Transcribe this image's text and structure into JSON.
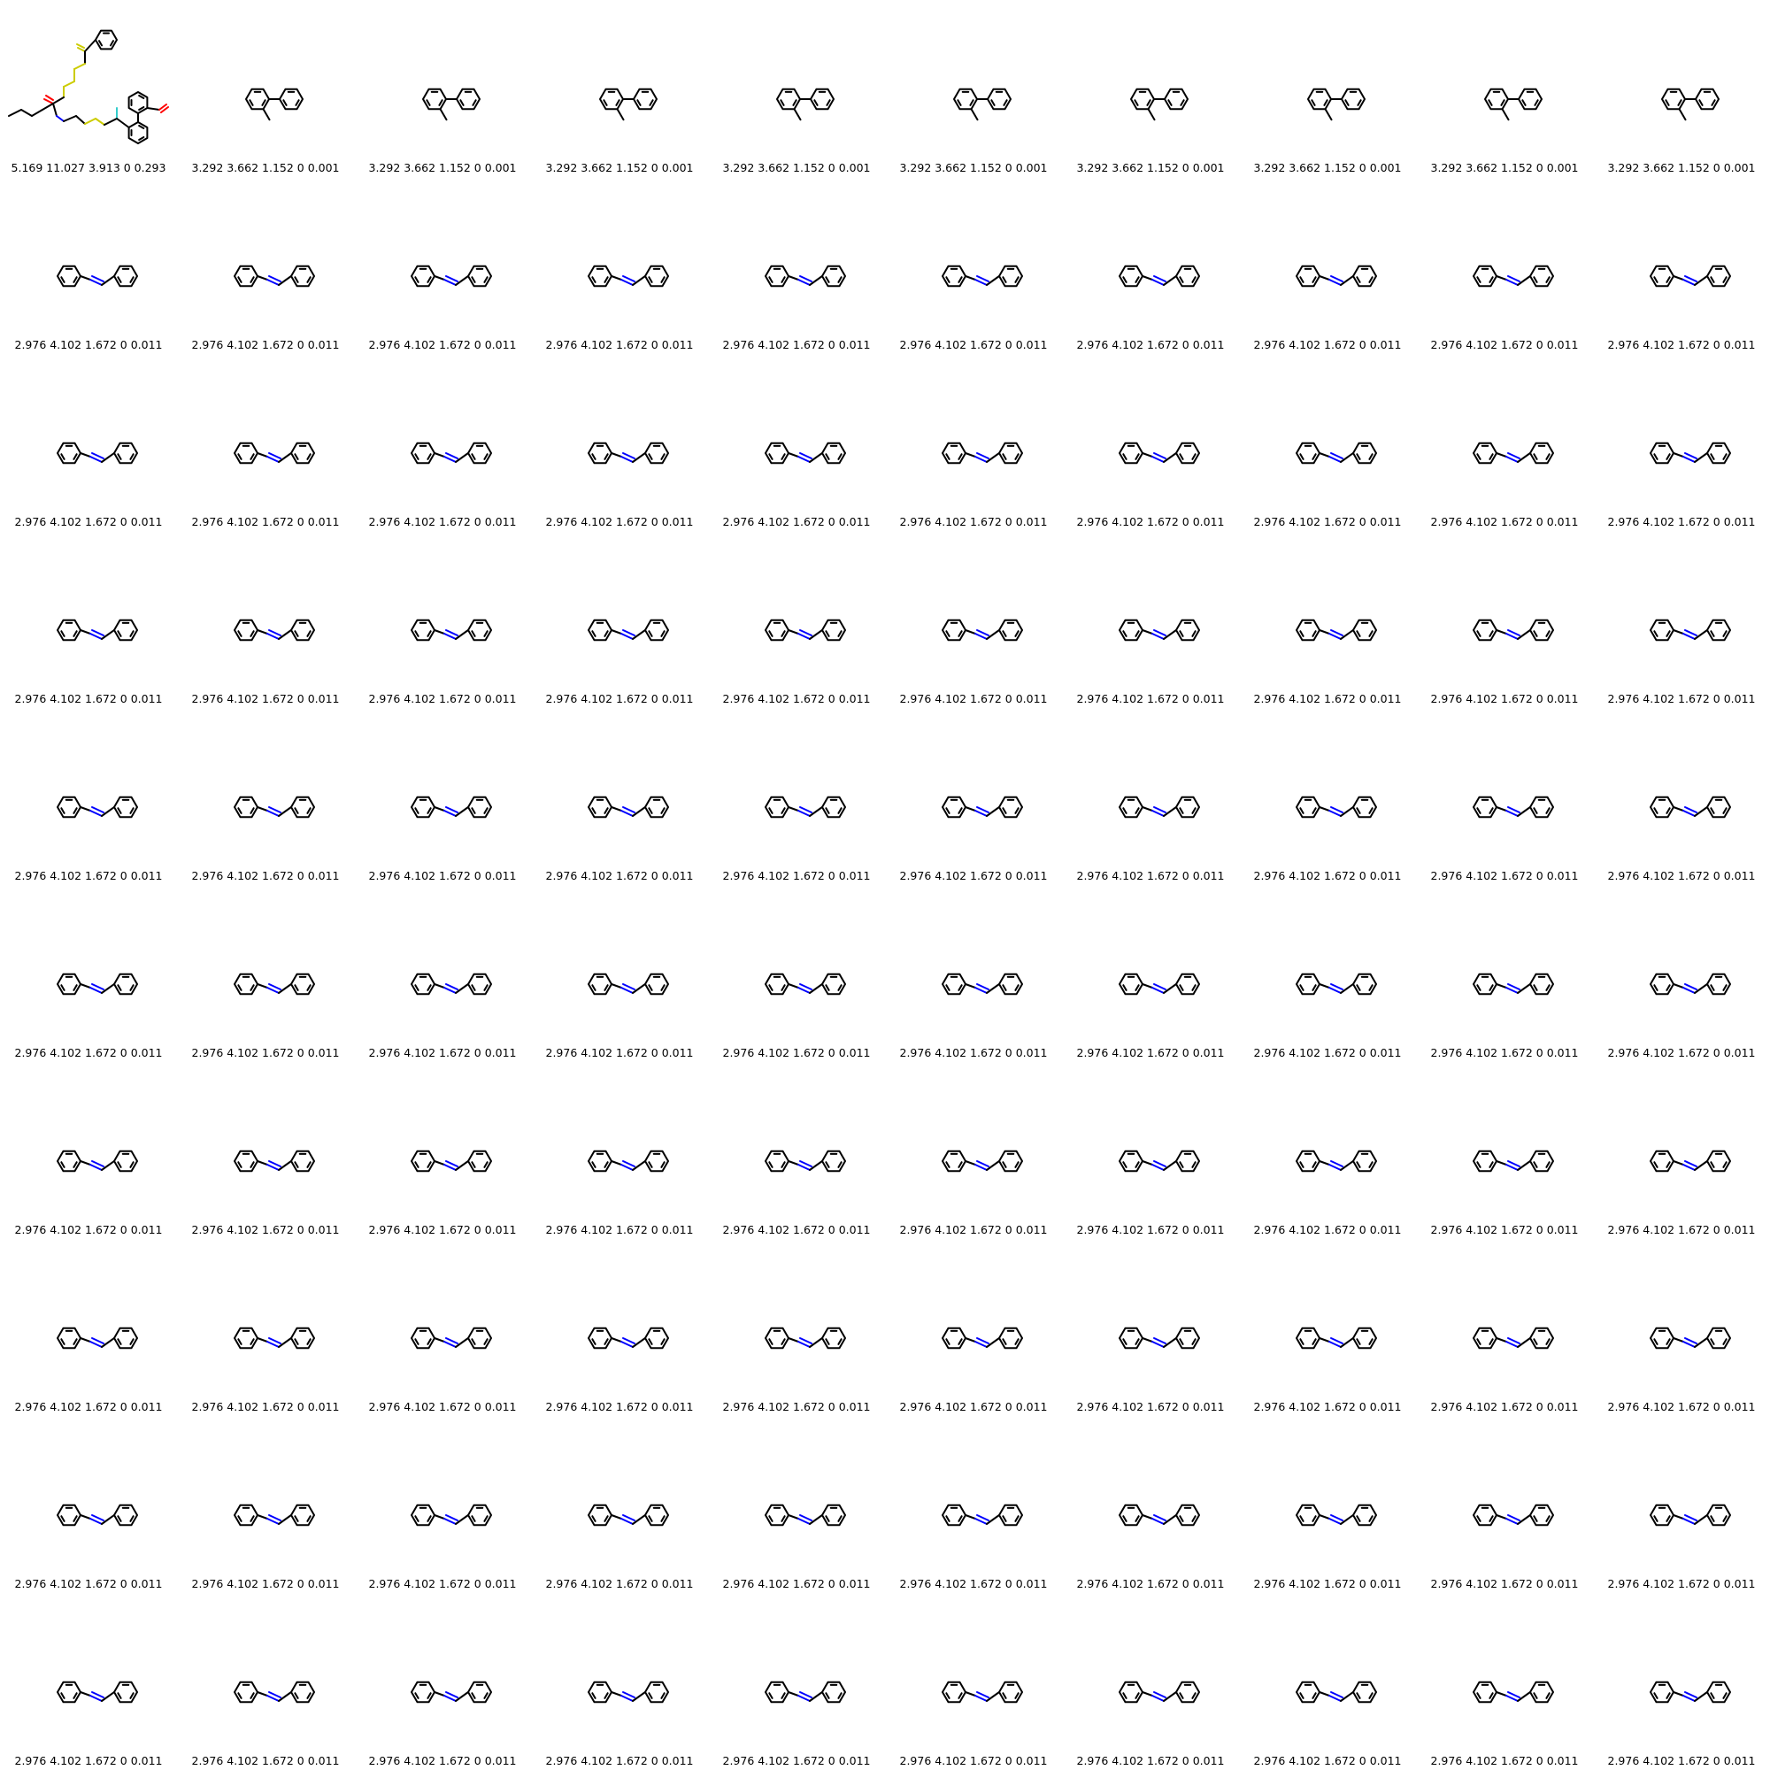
{
  "grid": {
    "rows": 10,
    "cols": 10
  },
  "colors": {
    "bond": "#000000",
    "nitrogen": "#0000ff",
    "sulfur": "#cccc00",
    "oxygen": "#ff0000",
    "fluorine": "#33cccc"
  },
  "molecules": {
    "complex": {
      "atoms": [
        "S",
        "S",
        "S",
        "S",
        "S",
        "N",
        "O",
        "O",
        "F"
      ]
    },
    "methylbiphenyl": {
      "atoms": [
        "C"
      ]
    },
    "azobenzene": {
      "atoms": [
        "N",
        "N"
      ]
    }
  },
  "cells": [
    {
      "mol": "complex",
      "label": "5.169 11.027 3.913 0 0.293"
    },
    {
      "mol": "methylbiphenyl",
      "label": "3.292 3.662 1.152 0 0.001"
    },
    {
      "mol": "methylbiphenyl",
      "label": "3.292 3.662 1.152 0 0.001"
    },
    {
      "mol": "methylbiphenyl",
      "label": "3.292 3.662 1.152 0 0.001"
    },
    {
      "mol": "methylbiphenyl",
      "label": "3.292 3.662 1.152 0 0.001"
    },
    {
      "mol": "methylbiphenyl",
      "label": "3.292 3.662 1.152 0 0.001"
    },
    {
      "mol": "methylbiphenyl",
      "label": "3.292 3.662 1.152 0 0.001"
    },
    {
      "mol": "methylbiphenyl",
      "label": "3.292 3.662 1.152 0 0.001"
    },
    {
      "mol": "methylbiphenyl",
      "label": "3.292 3.662 1.152 0 0.001"
    },
    {
      "mol": "methylbiphenyl",
      "label": "3.292 3.662 1.152 0 0.001"
    },
    {
      "mol": "azobenzene",
      "label": "2.976 4.102 1.672 0 0.011"
    },
    {
      "mol": "azobenzene",
      "label": "2.976 4.102 1.672 0 0.011"
    },
    {
      "mol": "azobenzene",
      "label": "2.976 4.102 1.672 0 0.011"
    },
    {
      "mol": "azobenzene",
      "label": "2.976 4.102 1.672 0 0.011"
    },
    {
      "mol": "azobenzene",
      "label": "2.976 4.102 1.672 0 0.011"
    },
    {
      "mol": "azobenzene",
      "label": "2.976 4.102 1.672 0 0.011"
    },
    {
      "mol": "azobenzene",
      "label": "2.976 4.102 1.672 0 0.011"
    },
    {
      "mol": "azobenzene",
      "label": "2.976 4.102 1.672 0 0.011"
    },
    {
      "mol": "azobenzene",
      "label": "2.976 4.102 1.672 0 0.011"
    },
    {
      "mol": "azobenzene",
      "label": "2.976 4.102 1.672 0 0.011"
    },
    {
      "mol": "azobenzene",
      "label": "2.976 4.102 1.672 0 0.011"
    },
    {
      "mol": "azobenzene",
      "label": "2.976 4.102 1.672 0 0.011"
    },
    {
      "mol": "azobenzene",
      "label": "2.976 4.102 1.672 0 0.011"
    },
    {
      "mol": "azobenzene",
      "label": "2.976 4.102 1.672 0 0.011"
    },
    {
      "mol": "azobenzene",
      "label": "2.976 4.102 1.672 0 0.011"
    },
    {
      "mol": "azobenzene",
      "label": "2.976 4.102 1.672 0 0.011"
    },
    {
      "mol": "azobenzene",
      "label": "2.976 4.102 1.672 0 0.011"
    },
    {
      "mol": "azobenzene",
      "label": "2.976 4.102 1.672 0 0.011"
    },
    {
      "mol": "azobenzene",
      "label": "2.976 4.102 1.672 0 0.011"
    },
    {
      "mol": "azobenzene",
      "label": "2.976 4.102 1.672 0 0.011"
    },
    {
      "mol": "azobenzene",
      "label": "2.976 4.102 1.672 0 0.011"
    },
    {
      "mol": "azobenzene",
      "label": "2.976 4.102 1.672 0 0.011"
    },
    {
      "mol": "azobenzene",
      "label": "2.976 4.102 1.672 0 0.011"
    },
    {
      "mol": "azobenzene",
      "label": "2.976 4.102 1.672 0 0.011"
    },
    {
      "mol": "azobenzene",
      "label": "2.976 4.102 1.672 0 0.011"
    },
    {
      "mol": "azobenzene",
      "label": "2.976 4.102 1.672 0 0.011"
    },
    {
      "mol": "azobenzene",
      "label": "2.976 4.102 1.672 0 0.011"
    },
    {
      "mol": "azobenzene",
      "label": "2.976 4.102 1.672 0 0.011"
    },
    {
      "mol": "azobenzene",
      "label": "2.976 4.102 1.672 0 0.011"
    },
    {
      "mol": "azobenzene",
      "label": "2.976 4.102 1.672 0 0.011"
    },
    {
      "mol": "azobenzene",
      "label": "2.976 4.102 1.672 0 0.011"
    },
    {
      "mol": "azobenzene",
      "label": "2.976 4.102 1.672 0 0.011"
    },
    {
      "mol": "azobenzene",
      "label": "2.976 4.102 1.672 0 0.011"
    },
    {
      "mol": "azobenzene",
      "label": "2.976 4.102 1.672 0 0.011"
    },
    {
      "mol": "azobenzene",
      "label": "2.976 4.102 1.672 0 0.011"
    },
    {
      "mol": "azobenzene",
      "label": "2.976 4.102 1.672 0 0.011"
    },
    {
      "mol": "azobenzene",
      "label": "2.976 4.102 1.672 0 0.011"
    },
    {
      "mol": "azobenzene",
      "label": "2.976 4.102 1.672 0 0.011"
    },
    {
      "mol": "azobenzene",
      "label": "2.976 4.102 1.672 0 0.011"
    },
    {
      "mol": "azobenzene",
      "label": "2.976 4.102 1.672 0 0.011"
    },
    {
      "mol": "azobenzene",
      "label": "2.976 4.102 1.672 0 0.011"
    },
    {
      "mol": "azobenzene",
      "label": "2.976 4.102 1.672 0 0.011"
    },
    {
      "mol": "azobenzene",
      "label": "2.976 4.102 1.672 0 0.011"
    },
    {
      "mol": "azobenzene",
      "label": "2.976 4.102 1.672 0 0.011"
    },
    {
      "mol": "azobenzene",
      "label": "2.976 4.102 1.672 0 0.011"
    },
    {
      "mol": "azobenzene",
      "label": "2.976 4.102 1.672 0 0.011"
    },
    {
      "mol": "azobenzene",
      "label": "2.976 4.102 1.672 0 0.011"
    },
    {
      "mol": "azobenzene",
      "label": "2.976 4.102 1.672 0 0.011"
    },
    {
      "mol": "azobenzene",
      "label": "2.976 4.102 1.672 0 0.011"
    },
    {
      "mol": "azobenzene",
      "label": "2.976 4.102 1.672 0 0.011"
    },
    {
      "mol": "azobenzene",
      "label": "2.976 4.102 1.672 0 0.011"
    },
    {
      "mol": "azobenzene",
      "label": "2.976 4.102 1.672 0 0.011"
    },
    {
      "mol": "azobenzene",
      "label": "2.976 4.102 1.672 0 0.011"
    },
    {
      "mol": "azobenzene",
      "label": "2.976 4.102 1.672 0 0.011"
    },
    {
      "mol": "azobenzene",
      "label": "2.976 4.102 1.672 0 0.011"
    },
    {
      "mol": "azobenzene",
      "label": "2.976 4.102 1.672 0 0.011"
    },
    {
      "mol": "azobenzene",
      "label": "2.976 4.102 1.672 0 0.011"
    },
    {
      "mol": "azobenzene",
      "label": "2.976 4.102 1.672 0 0.011"
    },
    {
      "mol": "azobenzene",
      "label": "2.976 4.102 1.672 0 0.011"
    },
    {
      "mol": "azobenzene",
      "label": "2.976 4.102 1.672 0 0.011"
    },
    {
      "mol": "azobenzene",
      "label": "2.976 4.102 1.672 0 0.011"
    },
    {
      "mol": "azobenzene",
      "label": "2.976 4.102 1.672 0 0.011"
    },
    {
      "mol": "azobenzene",
      "label": "2.976 4.102 1.672 0 0.011"
    },
    {
      "mol": "azobenzene",
      "label": "2.976 4.102 1.672 0 0.011"
    },
    {
      "mol": "azobenzene",
      "label": "2.976 4.102 1.672 0 0.011"
    },
    {
      "mol": "azobenzene",
      "label": "2.976 4.102 1.672 0 0.011"
    },
    {
      "mol": "azobenzene",
      "label": "2.976 4.102 1.672 0 0.011"
    },
    {
      "mol": "azobenzene",
      "label": "2.976 4.102 1.672 0 0.011"
    },
    {
      "mol": "azobenzene",
      "label": "2.976 4.102 1.672 0 0.011"
    },
    {
      "mol": "azobenzene",
      "label": "2.976 4.102 1.672 0 0.011"
    },
    {
      "mol": "azobenzene",
      "label": "2.976 4.102 1.672 0 0.011"
    },
    {
      "mol": "azobenzene",
      "label": "2.976 4.102 1.672 0 0.011"
    },
    {
      "mol": "azobenzene",
      "label": "2.976 4.102 1.672 0 0.011"
    },
    {
      "mol": "azobenzene",
      "label": "2.976 4.102 1.672 0 0.011"
    },
    {
      "mol": "azobenzene",
      "label": "2.976 4.102 1.672 0 0.011"
    },
    {
      "mol": "azobenzene",
      "label": "2.976 4.102 1.672 0 0.011"
    },
    {
      "mol": "azobenzene",
      "label": "2.976 4.102 1.672 0 0.011"
    },
    {
      "mol": "azobenzene",
      "label": "2.976 4.102 1.672 0 0.011"
    },
    {
      "mol": "azobenzene",
      "label": "2.976 4.102 1.672 0 0.011"
    },
    {
      "mol": "azobenzene",
      "label": "2.976 4.102 1.672 0 0.011"
    },
    {
      "mol": "azobenzene",
      "label": "2.976 4.102 1.672 0 0.011"
    },
    {
      "mol": "azobenzene",
      "label": "2.976 4.102 1.672 0 0.011"
    },
    {
      "mol": "azobenzene",
      "label": "2.976 4.102 1.672 0 0.011"
    },
    {
      "mol": "azobenzene",
      "label": "2.976 4.102 1.672 0 0.011"
    },
    {
      "mol": "azobenzene",
      "label": "2.976 4.102 1.672 0 0.011"
    },
    {
      "mol": "azobenzene",
      "label": "2.976 4.102 1.672 0 0.011"
    },
    {
      "mol": "azobenzene",
      "label": "2.976 4.102 1.672 0 0.011"
    },
    {
      "mol": "azobenzene",
      "label": "2.976 4.102 1.672 0 0.011"
    },
    {
      "mol": "azobenzene",
      "label": "2.976 4.102 1.672 0 0.011"
    },
    {
      "mol": "azobenzene",
      "label": "2.976 4.102 1.672 0 0.011"
    }
  ]
}
